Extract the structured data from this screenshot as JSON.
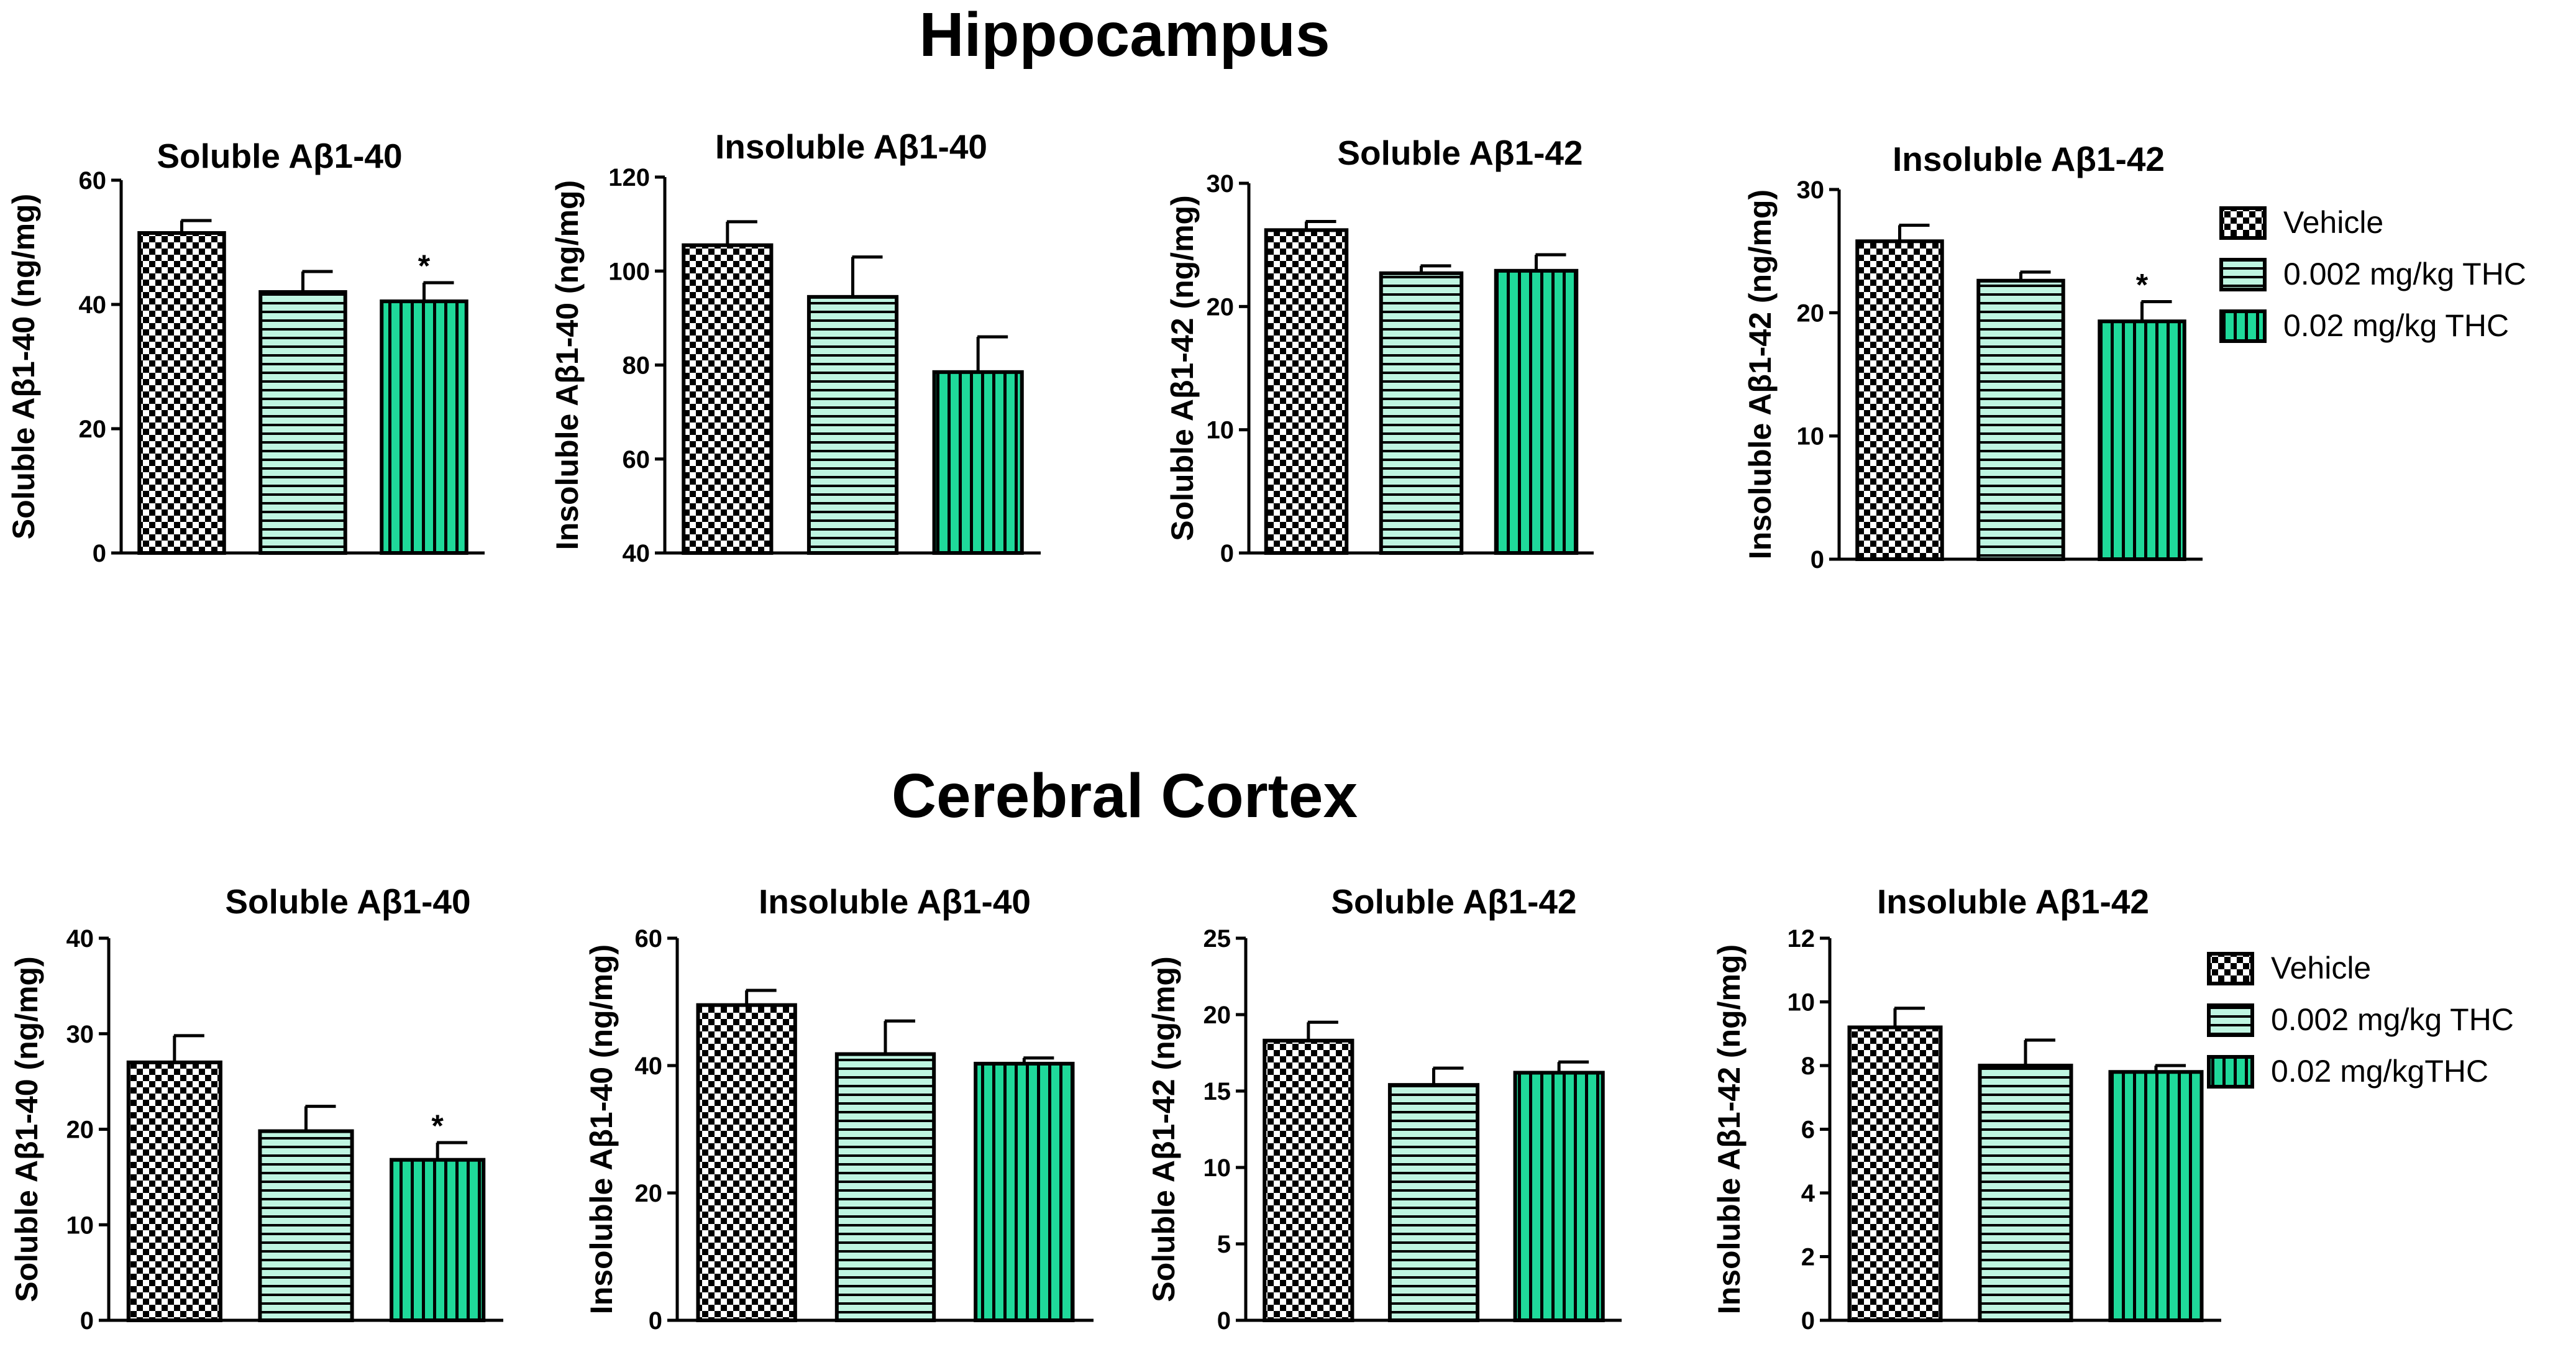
{
  "sections": [
    {
      "title": "Hippocampus"
    },
    {
      "title": "Cerebral Cortex"
    }
  ],
  "colors": {
    "vehicle_fill": "#000000",
    "low_dose_fill": "#bff5e1",
    "high_dose_fill": "#1fd99a",
    "stroke": "#000000"
  },
  "legends": [
    {
      "section": 0,
      "entries": [
        {
          "label": "Vehicle",
          "pattern": "check"
        },
        {
          "label": "0.002 mg/kg THC",
          "pattern": "hstripe"
        },
        {
          "label": "0.02 mg/kg THC",
          "pattern": "vstripe"
        }
      ]
    },
    {
      "section": 1,
      "entries": [
        {
          "label": "Vehicle",
          "pattern": "check"
        },
        {
          "label": "0.002 mg/kg THC",
          "pattern": "hstripe"
        },
        {
          "label": "0.02 mg/kgTHC",
          "pattern": "vstripe"
        }
      ]
    }
  ],
  "chart_data": [
    {
      "type": "bar",
      "section": 0,
      "title": "Soluble Aβ1-40",
      "ylabel": "Soluble Aβ1-40 (ng/mg)",
      "categories": [
        "Vehicle",
        "0.002 mg/kg THC",
        "0.02 mg/kg THC"
      ],
      "values": [
        51.5,
        42,
        40.5
      ],
      "errors": [
        2,
        3.3,
        3
      ],
      "significance": [
        "",
        "",
        "*"
      ],
      "ylim": [
        0,
        60
      ],
      "yticks": [
        0,
        20,
        40,
        60
      ]
    },
    {
      "type": "bar",
      "section": 0,
      "title": "Insoluble Aβ1-40",
      "ylabel": "Insoluble Aβ1-40 (ng/mg)",
      "categories": [
        "Vehicle",
        "0.002 mg/kg THC",
        "0.02 mg/kg THC"
      ],
      "values": [
        105.5,
        94.5,
        78.5
      ],
      "errors": [
        5,
        8.5,
        7.5
      ],
      "significance": [
        "",
        "",
        ""
      ],
      "ylim": [
        40,
        120
      ],
      "yticks": [
        40,
        60,
        80,
        100,
        120
      ]
    },
    {
      "type": "bar",
      "section": 0,
      "title": "Soluble Aβ1-42",
      "ylabel": "Soluble Aβ1-42 (ng/mg)",
      "categories": [
        "Vehicle",
        "0.002 mg/kg THC",
        "0.02 mg/kg THC"
      ],
      "values": [
        26.2,
        22.7,
        22.9
      ],
      "errors": [
        0.7,
        0.6,
        1.3
      ],
      "significance": [
        "",
        "",
        ""
      ],
      "ylim": [
        0,
        30
      ],
      "yticks": [
        0,
        10,
        20,
        30
      ]
    },
    {
      "type": "bar",
      "section": 0,
      "title": "Insoluble Aβ1-42",
      "ylabel": "Insoluble Aβ1-42 (ng/mg)",
      "categories": [
        "Vehicle",
        "0.002 mg/kg THC",
        "0.02 mg/kg THC"
      ],
      "values": [
        25.8,
        22.6,
        19.3
      ],
      "errors": [
        1.3,
        0.7,
        1.6
      ],
      "significance": [
        "",
        "",
        "*"
      ],
      "ylim": [
        0,
        30
      ],
      "yticks": [
        0,
        10,
        20,
        30
      ]
    },
    {
      "type": "bar",
      "section": 1,
      "title": "Soluble Aβ1-40",
      "ylabel": "Soluble Aβ1-40 (ng/mg)",
      "categories": [
        "Vehicle",
        "0.002 mg/kg THC",
        "0.02 mg/kgTHC"
      ],
      "values": [
        27,
        19.8,
        16.8
      ],
      "errors": [
        2.8,
        2.6,
        1.8
      ],
      "significance": [
        "",
        "",
        "*"
      ],
      "ylim": [
        0,
        40
      ],
      "yticks": [
        0,
        10,
        20,
        30,
        40
      ]
    },
    {
      "type": "bar",
      "section": 1,
      "title": "Insoluble Aβ1-40",
      "ylabel": "Insoluble Aβ1-40 (ng/mg)",
      "categories": [
        "Vehicle",
        "0.002 mg/kg THC",
        "0.02 mg/kgTHC"
      ],
      "values": [
        49.5,
        41.8,
        40.3
      ],
      "errors": [
        2.3,
        5.2,
        0.9
      ],
      "significance": [
        "",
        "",
        ""
      ],
      "ylim": [
        0,
        60
      ],
      "yticks": [
        0,
        20,
        40,
        60
      ]
    },
    {
      "type": "bar",
      "section": 1,
      "title": "Soluble Aβ1-42",
      "ylabel": "Soluble Aβ1-42 (ng/mg)",
      "categories": [
        "Vehicle",
        "0.002 mg/kg THC",
        "0.02 mg/kgTHC"
      ],
      "values": [
        18.3,
        15.4,
        16.2
      ],
      "errors": [
        1.2,
        1.1,
        0.7
      ],
      "significance": [
        "",
        "",
        ""
      ],
      "ylim": [
        0,
        25
      ],
      "yticks": [
        0,
        5,
        10,
        15,
        20,
        25
      ]
    },
    {
      "type": "bar",
      "section": 1,
      "title": "Insoluble Aβ1-42",
      "ylabel": "Insoluble Aβ1-42 (ng/mg)",
      "categories": [
        "Vehicle",
        "0.002 mg/kg THC",
        "0.02 mg/kgTHC"
      ],
      "values": [
        9.2,
        8,
        7.8
      ],
      "errors": [
        0.6,
        0.8,
        0.2
      ],
      "significance": [
        "",
        "",
        ""
      ],
      "ylim": [
        0,
        12
      ],
      "yticks": [
        0,
        2,
        4,
        6,
        8,
        10,
        12
      ]
    }
  ]
}
